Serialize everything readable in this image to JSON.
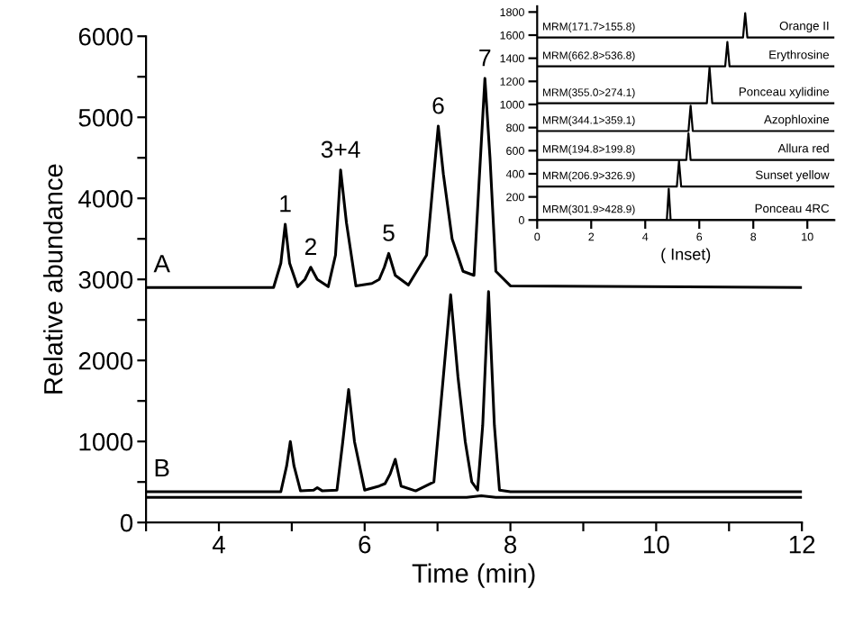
{
  "chart_data": [
    {
      "type": "line",
      "xlabel": "Time (min)",
      "ylabel": "Relative abundance",
      "xlim": [
        3,
        12
      ],
      "ylim": [
        0,
        6000
      ],
      "xticks": [
        {
          "value": 3,
          "label": null
        },
        4,
        {
          "value": 5,
          "label": null
        },
        6,
        {
          "value": 7,
          "label": null
        },
        8,
        {
          "value": 9,
          "label": null
        },
        10,
        {
          "value": 11,
          "label": null
        },
        12
      ],
      "yticks": [
        0,
        {
          "value": 500,
          "label": null
        },
        1000,
        {
          "value": 1500,
          "label": null
        },
        2000,
        {
          "value": 2500,
          "label": null
        },
        3000,
        {
          "value": 3500,
          "label": null
        },
        4000,
        {
          "value": 4500,
          "label": null
        },
        5000,
        {
          "value": 5500,
          "label": null
        },
        6000
      ],
      "grid": false,
      "legend": false,
      "series": [
        {
          "name": "A",
          "color": "#000000",
          "x": [
            3,
            4.75,
            4.85,
            4.91,
            4.97,
            5.08,
            5.18,
            5.26,
            5.35,
            5.5,
            5.6,
            5.67,
            5.75,
            5.88,
            6.1,
            6.2,
            6.27,
            6.33,
            6.42,
            6.6,
            6.85,
            6.95,
            7.01,
            7.08,
            7.2,
            7.35,
            7.5,
            7.57,
            7.65,
            7.72,
            7.8,
            8.0,
            12
          ],
          "values": [
            2900,
            2900,
            3200,
            3680,
            3200,
            2910,
            3000,
            3150,
            3000,
            2910,
            3300,
            4350,
            3700,
            2920,
            2950,
            3000,
            3150,
            3320,
            3050,
            2930,
            3300,
            4300,
            4890,
            4300,
            3500,
            3100,
            3050,
            4200,
            5480,
            4500,
            3100,
            2920,
            2900
          ]
        },
        {
          "name": "B",
          "color": "#000000",
          "x": [
            3,
            4.85,
            4.93,
            4.98,
            5.03,
            5.12,
            5.3,
            5.35,
            5.42,
            5.62,
            5.7,
            5.78,
            5.86,
            6.0,
            6.2,
            6.28,
            6.35,
            6.42,
            6.5,
            6.7,
            6.95,
            7.08,
            7.18,
            7.28,
            7.38,
            7.47,
            7.55,
            7.62,
            7.7,
            7.78,
            7.85,
            8.0,
            12
          ],
          "values": [
            380,
            380,
            700,
            1000,
            700,
            390,
            400,
            430,
            390,
            400,
            1000,
            1640,
            1000,
            400,
            450,
            480,
            600,
            780,
            450,
            390,
            500,
            1800,
            2810,
            1800,
            1000,
            500,
            400,
            1200,
            2850,
            1200,
            400,
            380,
            380
          ]
        },
        {
          "color": "#000000",
          "x": [
            3,
            7.4,
            7.6,
            7.8,
            12
          ],
          "values": [
            310,
            310,
            330,
            310,
            310
          ]
        }
      ],
      "annotations": [
        {
          "text": "1",
          "x": 4.91,
          "y": 3680
        },
        {
          "text": "2",
          "x": 5.26,
          "y": 3150
        },
        {
          "text": "3+4",
          "x": 5.67,
          "y": 4350
        },
        {
          "text": "5",
          "x": 6.33,
          "y": 3320
        },
        {
          "text": "6",
          "x": 7.01,
          "y": 4890
        },
        {
          "text": "7",
          "x": 7.65,
          "y": 5480
        }
      ]
    },
    {
      "type": "line",
      "xlabel": "( Inset)",
      "xlim": [
        0,
        11
      ],
      "ylim": [
        0,
        1850
      ],
      "xticks": [
        0,
        2,
        4,
        6,
        8,
        10
      ],
      "yticks": [
        0,
        200,
        400,
        600,
        800,
        1000,
        1200,
        1400,
        1600,
        1800
      ],
      "grid": false,
      "legend": false,
      "series": [
        {
          "name": "Ponceau 4RC",
          "color": "#000000",
          "x": [
            0,
            4.8,
            4.87,
            4.94,
            11
          ],
          "values": [
            0,
            0,
            270,
            0,
            0
          ]
        },
        {
          "name": "Sunset yellow",
          "color": "#000000",
          "x": [
            0,
            5.17,
            5.25,
            5.33,
            11
          ],
          "values": [
            290,
            290,
            510,
            290,
            290
          ]
        },
        {
          "name": "Allura red",
          "color": "#000000",
          "x": [
            0,
            5.52,
            5.6,
            5.68,
            11
          ],
          "values": [
            520,
            520,
            750,
            520,
            520
          ]
        },
        {
          "name": "Azophloxine",
          "color": "#000000",
          "x": [
            0,
            5.6,
            5.68,
            5.76,
            11
          ],
          "values": [
            770,
            770,
            990,
            770,
            770
          ]
        },
        {
          "name": "Ponceau xylidine",
          "color": "#000000",
          "x": [
            0,
            6.28,
            6.38,
            6.48,
            11
          ],
          "values": [
            1010,
            1010,
            1320,
            1010,
            1010
          ]
        },
        {
          "name": "Erythrosine",
          "color": "#000000",
          "x": [
            0,
            6.96,
            7.04,
            7.12,
            11
          ],
          "values": [
            1330,
            1330,
            1540,
            1330,
            1330
          ]
        },
        {
          "name": "Orange II",
          "color": "#000000",
          "x": [
            0,
            7.62,
            7.7,
            7.78,
            11
          ],
          "values": [
            1580,
            1580,
            1790,
            1580,
            1580
          ]
        }
      ],
      "annotations": [
        {
          "text": "MRM(301.9>428.9)",
          "x": 0.1,
          "y": 0
        },
        {
          "text": "MRM(206.9>326.9)",
          "x": 0.1,
          "y": 290
        },
        {
          "text": "MRM(194.8>199.8)",
          "x": 0.1,
          "y": 520
        },
        {
          "text": "MRM(344.1>359.1)",
          "x": 0.1,
          "y": 770
        },
        {
          "text": "MRM(355.0>274.1)",
          "x": 0.1,
          "y": 1010
        },
        {
          "text": "MRM(662.8>536.8)",
          "x": 0.1,
          "y": 1330
        },
        {
          "text": "MRM(171.7>155.8)",
          "x": 0.1,
          "y": 1580
        }
      ]
    }
  ]
}
